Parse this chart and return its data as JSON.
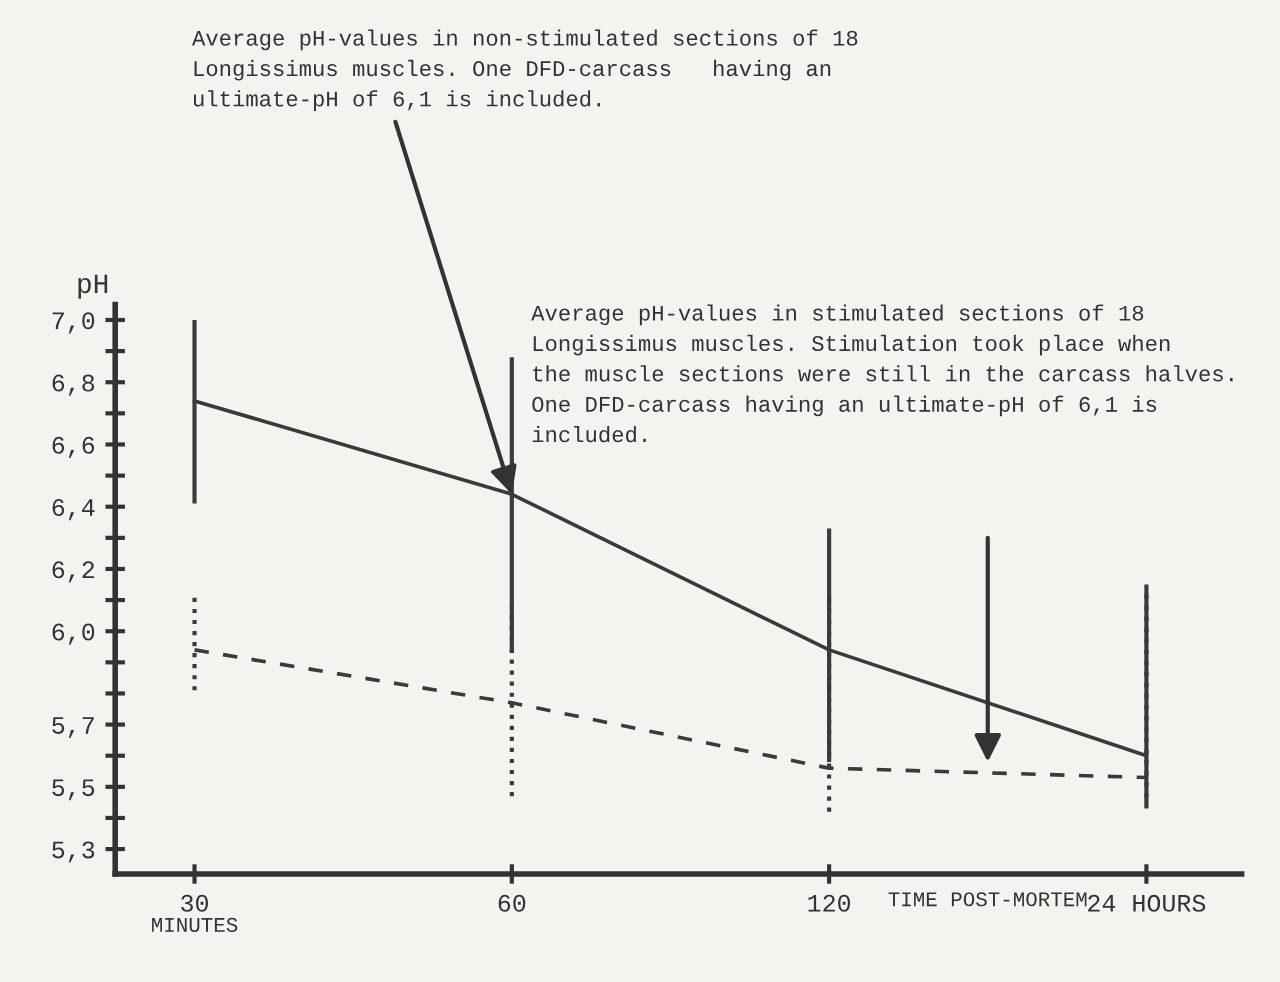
{
  "chart_data": {
    "type": "line",
    "categories": [
      "30",
      "60",
      "120",
      "24 HOURS"
    ],
    "xlabel": "TIME POST-MORTEM",
    "ylabel": "pH",
    "series": [
      {
        "color": "#3a3a3a",
        "line_style": "solid",
        "values": [
          6.74,
          6.44,
          5.94,
          5.6
        ],
        "errors": [
          [
            6.41,
            7.0
          ],
          [
            5.93,
            6.88
          ],
          [
            5.58,
            6.33
          ],
          [
            5.44,
            6.15
          ]
        ]
      },
      {
        "color": "#3a3a3a",
        "line_style": "dashed",
        "values": [
          5.94,
          5.77,
          5.56,
          5.53
        ],
        "errors": [
          [
            5.81,
            6.12
          ],
          [
            5.47,
            6.08
          ],
          [
            5.42,
            6.13
          ],
          [
            5.43,
            6.14
          ]
        ]
      }
    ],
    "ylim": [
      5.22,
      7.05
    ],
    "yticks": [
      {
        "value": 5.3,
        "label": "5,3"
      },
      {
        "value": 5.4,
        "label": null
      },
      {
        "value": 5.5,
        "label": "5,5"
      },
      {
        "value": 5.6,
        "label": null
      },
      {
        "value": 5.7,
        "label": "5,7"
      },
      {
        "value": 5.8,
        "label": null
      },
      {
        "value": 5.9,
        "label": null
      },
      {
        "value": 6.0,
        "label": "6,0"
      },
      {
        "value": 6.1,
        "label": null
      },
      {
        "value": 6.2,
        "label": "6,2"
      },
      {
        "value": 6.3,
        "label": null
      },
      {
        "value": 6.4,
        "label": "6,4"
      },
      {
        "value": 6.5,
        "label": null
      },
      {
        "value": 6.6,
        "label": "6,6"
      },
      {
        "value": 6.7,
        "label": null
      },
      {
        "value": 6.8,
        "label": "6,8"
      },
      {
        "value": 6.9,
        "label": null
      },
      {
        "value": 7.0,
        "label": "7,0"
      }
    ],
    "annotations": [
      {
        "text": "Average pH-values in non-stimulated sections of 18\nLongissimus muscles. One DFD-carcass   having an\nultimate-pH of 6,1 is included.",
        "x": "60",
        "y": 6.44
      },
      "Average pH-values in stimulated sections of 18\nLongissimus muscles. Stimulation took place when\nthe muscle sections were still in the carcass halves.\nOne DFD-carcass having an ultimate-pH of 6,1 is\nincluded.",
      "MINUTES"
    ],
    "grid": false,
    "legend": false,
    "marker": "none"
  }
}
